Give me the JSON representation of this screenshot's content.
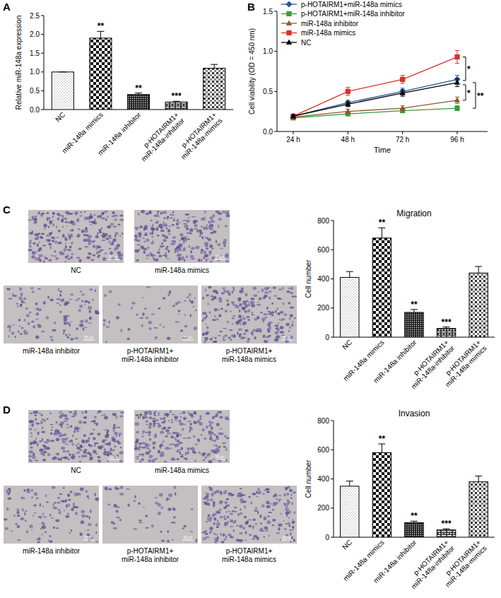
{
  "chart_data": [
    {
      "panel_label": "A",
      "type": "bar",
      "categories": [
        "NC",
        "miR-148a mimics",
        "miR-148a inhibitor",
        "p-HOTAIRM1+\nmiR-148a-inhibitor",
        "p-HOTAIRM1+\nmiR-148a-mimics"
      ],
      "values": [
        1.0,
        1.9,
        0.4,
        0.2,
        1.1
      ],
      "errors": [
        0,
        0.18,
        0.04,
        0.02,
        0.1
      ],
      "annotations": [
        null,
        "**",
        "**",
        "***",
        null
      ],
      "y_label": "Relative miR-148a expression",
      "ylim": [
        0,
        2.5
      ],
      "yticks": [
        {
          "value": 0,
          "label": "0.0"
        },
        0.5,
        {
          "value": 1,
          "label": "1.0"
        },
        1.5,
        {
          "value": 2,
          "label": "2.0"
        },
        2.5
      ],
      "color": "#000000"
    },
    {
      "panel_label": "B",
      "type": "line",
      "categories": [
        "24 h",
        "48 h",
        "72 h",
        "96 h"
      ],
      "series": [
        {
          "name": "p-HOTAIRM1+miR-148a mimics",
          "color": "#2f5597",
          "marker": "diamond",
          "values": [
            0.19,
            0.36,
            0.5,
            0.65
          ],
          "errors": [
            0.02,
            0.03,
            0.04,
            0.05
          ]
        },
        {
          "name": "p-HOTAIRM1+miR-148a inhibitor",
          "color": "#3a9a3a",
          "marker": "square",
          "values": [
            0.17,
            0.22,
            0.26,
            0.29
          ],
          "errors": [
            0.02,
            0.02,
            0.02,
            0.03
          ]
        },
        {
          "name": "miR-148a inhibitor",
          "color": "#8b5a2b",
          "marker": "triangle",
          "values": [
            0.18,
            0.25,
            0.29,
            0.39
          ],
          "errors": [
            0.02,
            0.03,
            0.03,
            0.04
          ]
        },
        {
          "name": "miR-148a mimics",
          "color": "#d9302a",
          "marker": "square",
          "values": [
            0.19,
            0.5,
            0.65,
            0.93
          ],
          "errors": [
            0.02,
            0.05,
            0.05,
            0.08
          ]
        },
        {
          "name": "NC",
          "color": "#000000",
          "marker": "triangle",
          "values": [
            0.19,
            0.34,
            0.48,
            0.61
          ],
          "errors": [
            0.02,
            0.03,
            0.04,
            0.05
          ]
        }
      ],
      "comparisons": [
        {
          "label": "*",
          "between": [
            "miR-148a mimics",
            "NC"
          ]
        },
        {
          "label": "*",
          "between": [
            "NC",
            "miR-148a inhibitor"
          ]
        },
        {
          "label": "**",
          "between": [
            "NC",
            "p-HOTAIRM1+miR-148a inhibitor"
          ]
        }
      ],
      "x_label": "Time",
      "y_label": "Cell viability (OD = 450 nm)",
      "ylim": [
        0,
        1.5
      ],
      "yticks": [
        {
          "value": 0,
          "label": "0.0"
        },
        0.5,
        {
          "value": 1,
          "label": "1.0"
        },
        1.5
      ],
      "legend": "upper left"
    },
    {
      "panel_label": "C",
      "type": "bar",
      "title": "Migration",
      "images": {
        "captions": [
          "NC",
          "miR-148a mimics",
          "miR-148a inhibitor",
          "p-HOTAIRM1+\nmiR-148a inhibitor",
          "p-HOTAIRM1+\nmiR-148a mimics"
        ],
        "scale_bar": "50 μm"
      },
      "categories": [
        "NC",
        "miR-148a mimics",
        "miR-148a inhibitor",
        "p-HOTAIRM1+\nmiR-148a-inhibitor",
        "p-HOTAIRM1+\nmiR-148a-mimics"
      ],
      "values": [
        410,
        680,
        170,
        60,
        440
      ],
      "errors": [
        40,
        70,
        20,
        10,
        45
      ],
      "annotations": [
        null,
        "**",
        "**",
        "***",
        null
      ],
      "y_label": "Cell number",
      "ylim": [
        0,
        800
      ],
      "yticks": [
        0,
        200,
        400,
        600,
        800
      ],
      "color": "#000000"
    },
    {
      "panel_label": "D",
      "type": "bar",
      "title": "Invasion",
      "images": {
        "captions": [
          "NC",
          "miR-148a mimics",
          "miR-148a inhibitor",
          "p-HOTAIRM1+\nmiR-148a inhibitor",
          "p-HOTAIRM1+\nmiR-148a mimics"
        ],
        "scale_bar": "50 μm"
      },
      "categories": [
        "NC",
        "miR-148a mimics",
        "miR-148a inhibitor",
        "p-HOTAIRM1+\nmiR-148a-inhibitor",
        "p-HOTAIRM1+\nmiR-148a-mimics"
      ],
      "values": [
        350,
        580,
        100,
        50,
        380
      ],
      "errors": [
        35,
        60,
        10,
        8,
        40
      ],
      "annotations": [
        null,
        "**",
        "**",
        "***",
        null
      ],
      "y_label": "Cell number",
      "ylim": [
        0,
        800
      ],
      "yticks": [
        0,
        200,
        400,
        600,
        800
      ],
      "color": "#000000"
    }
  ]
}
